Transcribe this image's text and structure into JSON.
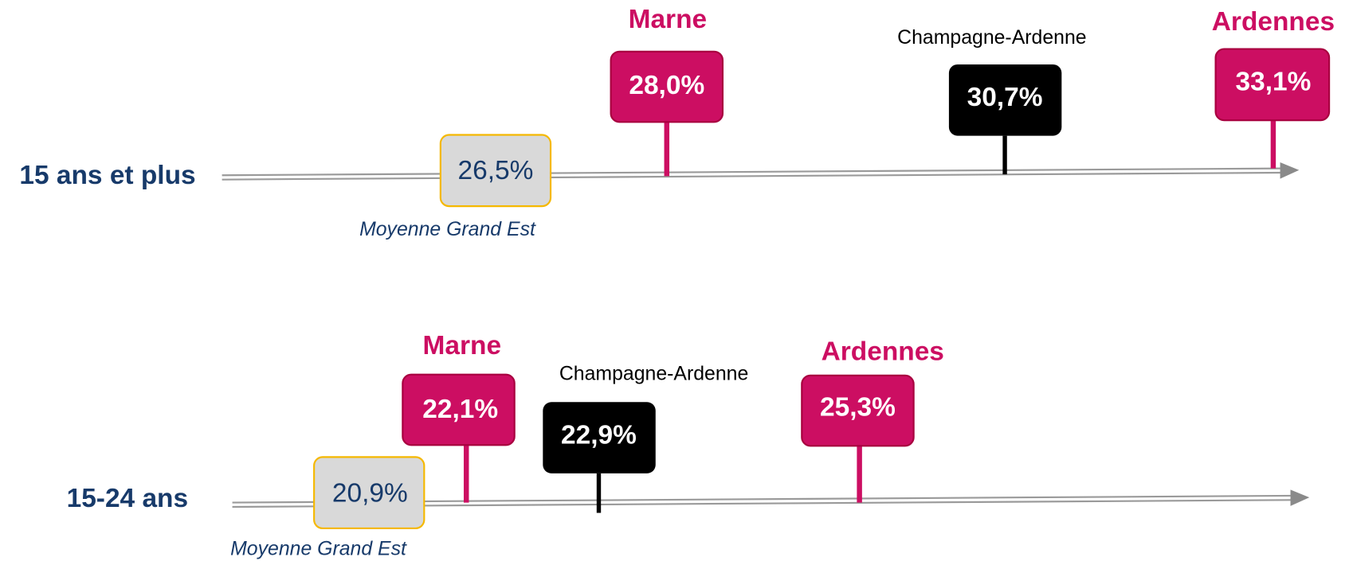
{
  "rows": [
    {
      "label": "15 ans et plus",
      "average": {
        "value": "26,5%",
        "caption": "Moyenne Grand Est"
      },
      "markers": [
        {
          "name": "Marne",
          "value": "28,0%"
        },
        {
          "name": "Champagne-Ardenne",
          "value": "30,7%"
        },
        {
          "name": "Ardennes",
          "value": "33,1%"
        }
      ]
    },
    {
      "label": "15-24 ans",
      "average": {
        "value": "20,9%",
        "caption": "Moyenne Grand Est"
      },
      "markers": [
        {
          "name": "Marne",
          "value": "22,1%"
        },
        {
          "name": "Champagne-Ardenne",
          "value": "22,9%"
        },
        {
          "name": "Ardennes",
          "value": "25,3%"
        }
      ]
    }
  ]
}
